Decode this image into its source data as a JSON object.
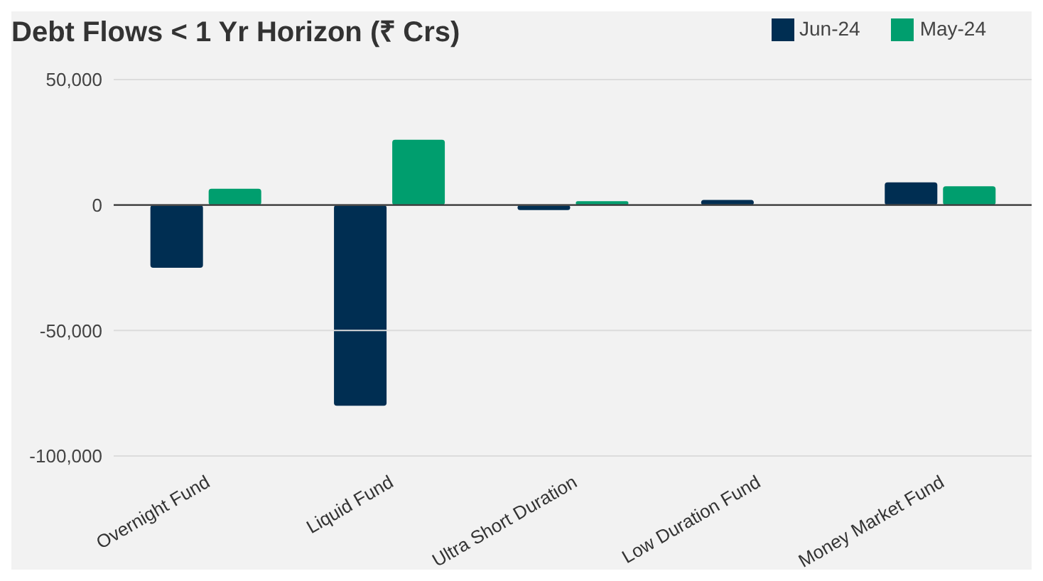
{
  "chart_data": {
    "type": "bar",
    "title": "Debt Flows < 1 Yr Horizon (₹ Crs)",
    "categories": [
      "Overnight Fund",
      "Liquid Fund",
      "Ultra Short Duration",
      "Low Duration Fund",
      "Money Market Fund"
    ],
    "series": [
      {
        "name": "Jun-24",
        "color": "#002e52",
        "values": [
          -25000,
          -80000,
          -2000,
          2000,
          9000
        ]
      },
      {
        "name": "May-24",
        "color": "#009e6e",
        "values": [
          6500,
          26000,
          1500,
          0,
          7500
        ]
      }
    ],
    "ylim": [
      -100000,
      50000
    ],
    "yticks": [
      {
        "value": -100000,
        "label": "-100,000"
      },
      {
        "value": -50000,
        "label": "-50,000"
      },
      0,
      {
        "value": 50000,
        "label": "50,000"
      }
    ],
    "grid": "y",
    "legend": "top right"
  }
}
